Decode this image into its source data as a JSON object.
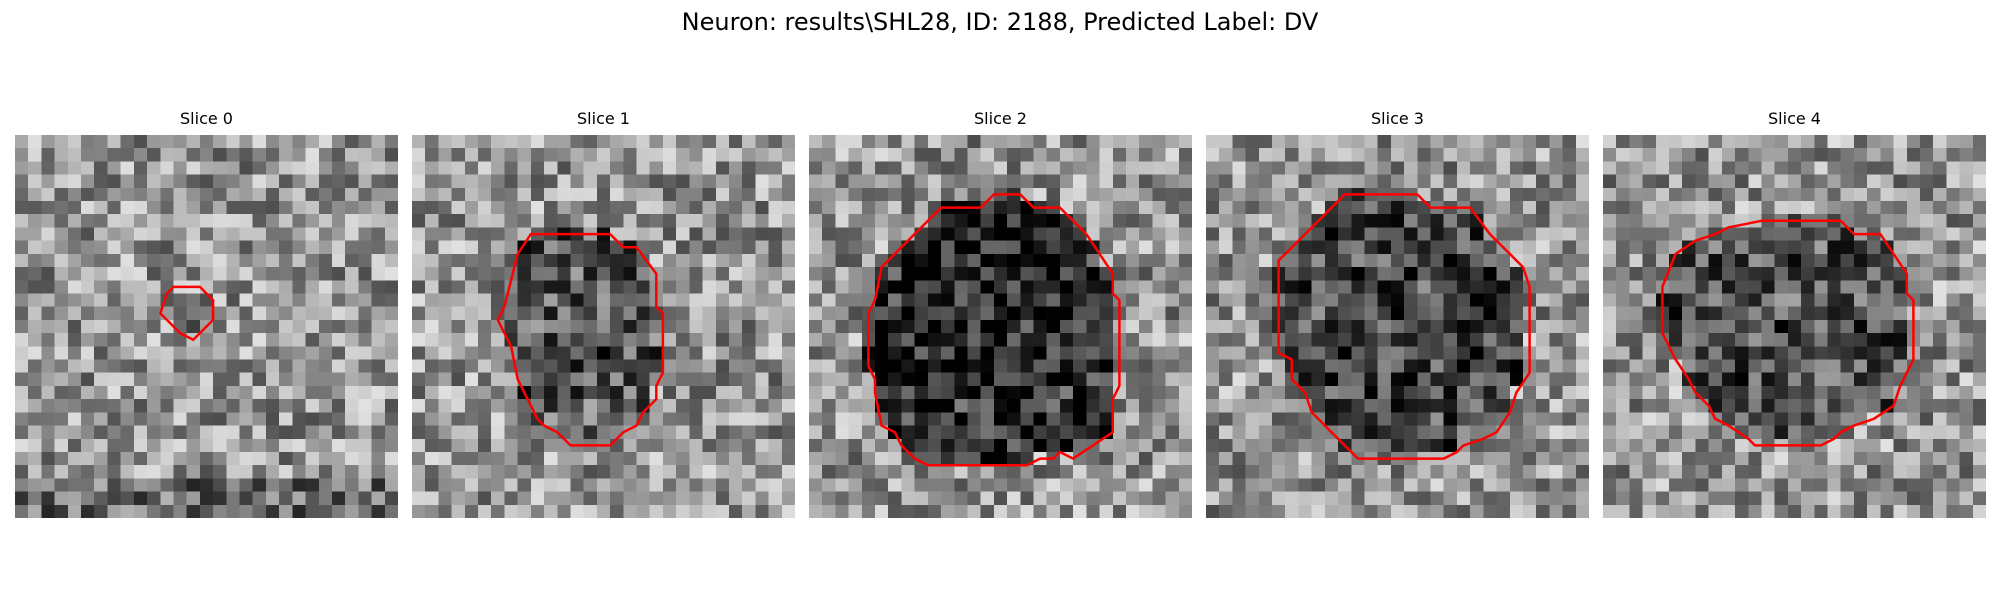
{
  "figure": {
    "title": "Neuron: results\\SHL28, ID: 2188, Predicted Label: DV",
    "contour_color": "#ff0000",
    "colormap": "gray",
    "grid_size": 29
  },
  "panels": [
    {
      "title": "Slice 0",
      "darkness": 0.03,
      "contour_cells": [
        [
          12.0,
          11.5
        ],
        [
          14.0,
          11.5
        ],
        [
          15.0,
          12.5
        ],
        [
          15.0,
          14.0
        ],
        [
          13.5,
          15.5
        ],
        [
          12.5,
          15.0
        ],
        [
          12.0,
          14.5
        ],
        [
          11.0,
          13.5
        ],
        [
          11.5,
          12.0
        ]
      ]
    },
    {
      "title": "Slice 1",
      "darkness": 0.32,
      "contour_cells": [
        [
          9.0,
          7.5
        ],
        [
          15.0,
          7.5
        ],
        [
          16.0,
          8.5
        ],
        [
          17.0,
          8.5
        ],
        [
          18.5,
          10.5
        ],
        [
          18.5,
          13.0
        ],
        [
          19.0,
          13.5
        ],
        [
          19.0,
          18.0
        ],
        [
          18.5,
          19.0
        ],
        [
          18.5,
          20.0
        ],
        [
          17.5,
          21.0
        ],
        [
          17.0,
          22.0
        ],
        [
          16.0,
          22.5
        ],
        [
          15.0,
          23.5
        ],
        [
          12.0,
          23.5
        ],
        [
          11.0,
          22.5
        ],
        [
          10.0,
          22.0
        ],
        [
          9.5,
          21.5
        ],
        [
          8.0,
          18.5
        ],
        [
          7.5,
          16.0
        ],
        [
          7.0,
          15.0
        ],
        [
          6.5,
          14.0
        ],
        [
          7.0,
          13.0
        ],
        [
          7.5,
          11.0
        ],
        [
          8.0,
          9.0
        ]
      ]
    },
    {
      "title": "Slice 2",
      "darkness": 0.55,
      "contour_cells": [
        [
          10.0,
          5.5
        ],
        [
          13.0,
          5.5
        ],
        [
          14.0,
          4.5
        ],
        [
          16.0,
          4.5
        ],
        [
          17.0,
          5.5
        ],
        [
          19.0,
          5.5
        ],
        [
          21.0,
          7.5
        ],
        [
          22.0,
          9.0
        ],
        [
          23.0,
          10.5
        ],
        [
          23.0,
          12.0
        ],
        [
          23.5,
          12.5
        ],
        [
          23.5,
          19.0
        ],
        [
          23.0,
          20.0
        ],
        [
          23.0,
          22.5
        ],
        [
          21.5,
          23.5
        ],
        [
          20.0,
          24.5
        ],
        [
          19.0,
          24.0
        ],
        [
          18.5,
          24.5
        ],
        [
          17.5,
          24.5
        ],
        [
          16.5,
          25.0
        ],
        [
          9.0,
          25.0
        ],
        [
          8.0,
          24.5
        ],
        [
          7.0,
          23.5
        ],
        [
          6.5,
          22.5
        ],
        [
          5.5,
          22.0
        ],
        [
          5.0,
          19.5
        ],
        [
          5.0,
          18.5
        ],
        [
          4.5,
          17.5
        ],
        [
          4.5,
          13.5
        ],
        [
          5.0,
          12.5
        ],
        [
          5.5,
          10.0
        ],
        [
          7.0,
          8.5
        ],
        [
          8.5,
          7.0
        ]
      ]
    },
    {
      "title": "Slice 3",
      "darkness": 0.4,
      "contour_cells": [
        [
          10.5,
          4.5
        ],
        [
          16.0,
          4.5
        ],
        [
          17.0,
          5.5
        ],
        [
          20.0,
          5.5
        ],
        [
          21.5,
          7.5
        ],
        [
          23.0,
          9.0
        ],
        [
          24.0,
          10.0
        ],
        [
          24.5,
          11.5
        ],
        [
          24.5,
          18.0
        ],
        [
          23.5,
          19.5
        ],
        [
          23.0,
          21.0
        ],
        [
          22.0,
          22.5
        ],
        [
          21.0,
          23.0
        ],
        [
          19.5,
          23.5
        ],
        [
          19.0,
          24.0
        ],
        [
          18.0,
          24.5
        ],
        [
          11.5,
          24.5
        ],
        [
          10.5,
          23.5
        ],
        [
          9.5,
          22.5
        ],
        [
          8.0,
          21.0
        ],
        [
          7.5,
          19.5
        ],
        [
          6.5,
          18.5
        ],
        [
          6.5,
          17.0
        ],
        [
          5.5,
          16.5
        ],
        [
          5.5,
          9.5
        ],
        [
          7.5,
          7.5
        ],
        [
          9.5,
          5.5
        ]
      ]
    },
    {
      "title": "Slice 4",
      "darkness": 0.35,
      "contour_cells": [
        [
          12.0,
          6.5
        ],
        [
          18.0,
          6.5
        ],
        [
          19.0,
          7.5
        ],
        [
          21.0,
          7.5
        ],
        [
          22.0,
          9.0
        ],
        [
          23.0,
          10.5
        ],
        [
          23.0,
          12.0
        ],
        [
          23.5,
          12.5
        ],
        [
          23.5,
          17.0
        ],
        [
          23.0,
          18.0
        ],
        [
          22.5,
          19.0
        ],
        [
          22.0,
          20.5
        ],
        [
          20.5,
          21.5
        ],
        [
          19.0,
          22.0
        ],
        [
          18.0,
          22.5
        ],
        [
          17.5,
          23.0
        ],
        [
          16.5,
          23.5
        ],
        [
          11.5,
          23.5
        ],
        [
          11.0,
          23.0
        ],
        [
          9.5,
          22.0
        ],
        [
          8.5,
          21.5
        ],
        [
          8.0,
          20.5
        ],
        [
          7.0,
          19.5
        ],
        [
          6.5,
          18.5
        ],
        [
          5.5,
          17.0
        ],
        [
          4.5,
          15.0
        ],
        [
          4.5,
          11.5
        ],
        [
          5.5,
          9.0
        ],
        [
          7.0,
          8.0
        ],
        [
          8.5,
          7.5
        ],
        [
          9.5,
          7.0
        ]
      ]
    }
  ]
}
